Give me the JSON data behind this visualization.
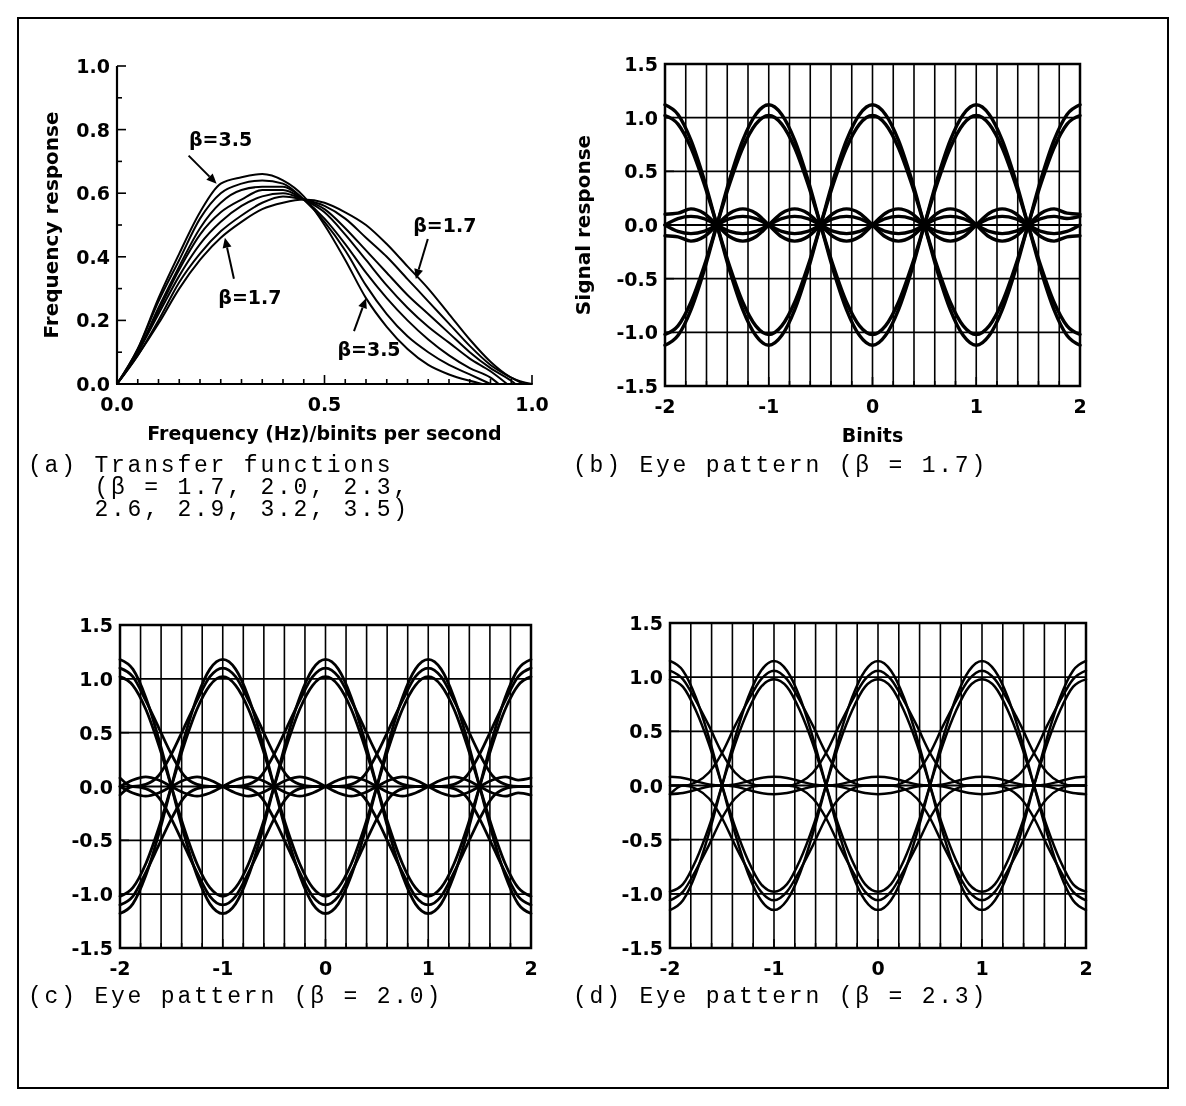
{
  "chart_data": [
    {
      "type": "line",
      "title": "(a) Transfer functions (β = 1.7, 2.0, 2.3, 2.6, 2.9, 3.2, 3.5)",
      "xlabel": "Frequency (Hz)/binits per second",
      "ylabel": "Frequency response",
      "x": [
        0,
        0.05,
        0.1,
        0.15,
        0.2,
        0.25,
        0.3,
        0.35,
        0.4,
        0.45,
        0.5,
        0.55,
        0.6,
        0.65,
        0.7,
        0.75,
        0.8,
        0.85,
        0.9,
        0.95,
        1
      ],
      "series": [
        {
          "color": "#000000",
          "values": [
            0,
            0.09,
            0.19,
            0.3,
            0.39,
            0.46,
            0.51,
            0.55,
            0.57,
            0.58,
            0.57,
            0.54,
            0.5,
            0.44,
            0.37,
            0.3,
            0.22,
            0.14,
            0.07,
            0.02,
            0
          ]
        },
        {
          "color": "#000000",
          "x": [
            0,
            0.05,
            0.1,
            0.15,
            0.2,
            0.25,
            0.3,
            0.35,
            0.4,
            0.45,
            0.5,
            0.55,
            0.6,
            0.65,
            0.7,
            0.75,
            0.8,
            0.85,
            0.9,
            0.95,
            0.98
          ],
          "values": [
            0,
            0.09,
            0.2,
            0.32,
            0.41,
            0.48,
            0.53,
            0.57,
            0.59,
            0.58,
            0.56,
            0.52,
            0.46,
            0.4,
            0.33,
            0.26,
            0.19,
            0.12,
            0.06,
            0.02,
            0
          ]
        },
        {
          "color": "#000000",
          "x": [
            0,
            0.05,
            0.1,
            0.15,
            0.2,
            0.25,
            0.3,
            0.35,
            0.4,
            0.45,
            0.5,
            0.55,
            0.6,
            0.65,
            0.7,
            0.75,
            0.8,
            0.85,
            0.9,
            0.95,
            0.96
          ],
          "values": [
            0,
            0.1,
            0.22,
            0.34,
            0.44,
            0.51,
            0.56,
            0.59,
            0.6,
            0.58,
            0.55,
            0.49,
            0.42,
            0.35,
            0.28,
            0.22,
            0.16,
            0.1,
            0.05,
            0.01,
            0
          ]
        },
        {
          "color": "#000000",
          "x": [
            0,
            0.05,
            0.1,
            0.15,
            0.2,
            0.25,
            0.3,
            0.35,
            0.4,
            0.45,
            0.5,
            0.55,
            0.6,
            0.65,
            0.7,
            0.75,
            0.8,
            0.85,
            0.9,
            0.94
          ],
          "values": [
            0,
            0.1,
            0.23,
            0.36,
            0.47,
            0.54,
            0.58,
            0.61,
            0.61,
            0.58,
            0.54,
            0.47,
            0.39,
            0.31,
            0.24,
            0.18,
            0.13,
            0.08,
            0.04,
            0
          ]
        },
        {
          "color": "#000000",
          "x": [
            0,
            0.05,
            0.1,
            0.15,
            0.2,
            0.25,
            0.3,
            0.35,
            0.4,
            0.45,
            0.5,
            0.55,
            0.6,
            0.65,
            0.7,
            0.75,
            0.8,
            0.85,
            0.9,
            0.92
          ],
          "values": [
            0,
            0.1,
            0.24,
            0.37,
            0.49,
            0.57,
            0.61,
            0.62,
            0.62,
            0.58,
            0.52,
            0.44,
            0.35,
            0.27,
            0.2,
            0.14,
            0.09,
            0.05,
            0.02,
            0
          ]
        },
        {
          "color": "#000000",
          "x": [
            0,
            0.05,
            0.1,
            0.15,
            0.2,
            0.25,
            0.3,
            0.35,
            0.4,
            0.45,
            0.5,
            0.55,
            0.6,
            0.65,
            0.7,
            0.75,
            0.8,
            0.85,
            0.9
          ],
          "values": [
            0,
            0.11,
            0.26,
            0.39,
            0.52,
            0.6,
            0.63,
            0.64,
            0.63,
            0.58,
            0.51,
            0.42,
            0.31,
            0.22,
            0.15,
            0.1,
            0.06,
            0.03,
            0
          ]
        },
        {
          "color": "#000000",
          "x": [
            0,
            0.05,
            0.1,
            0.15,
            0.2,
            0.25,
            0.3,
            0.35,
            0.4,
            0.45,
            0.5,
            0.55,
            0.6,
            0.65,
            0.7,
            0.75,
            0.8,
            0.85,
            0.88
          ],
          "values": [
            0,
            0.11,
            0.27,
            0.41,
            0.54,
            0.63,
            0.65,
            0.66,
            0.64,
            0.59,
            0.5,
            0.39,
            0.27,
            0.18,
            0.11,
            0.06,
            0.03,
            0.01,
            0
          ]
        }
      ],
      "xlim": [
        0,
        1
      ],
      "ylim": [
        0,
        1
      ],
      "xticks": [
        {
          "value": 0,
          "label": "0.0"
        },
        {
          "value": 0.05,
          "label": null
        },
        {
          "value": 0.1,
          "label": null
        },
        {
          "value": 0.15,
          "label": null
        },
        {
          "value": 0.2,
          "label": null
        },
        {
          "value": 0.25,
          "label": null
        },
        {
          "value": 0.3,
          "label": null
        },
        {
          "value": 0.35,
          "label": null
        },
        {
          "value": 0.4,
          "label": null
        },
        {
          "value": 0.45,
          "label": null
        },
        0.5,
        {
          "value": 0.55,
          "label": null
        },
        {
          "value": 0.6,
          "label": null
        },
        {
          "value": 0.65,
          "label": null
        },
        {
          "value": 0.7,
          "label": null
        },
        {
          "value": 0.75,
          "label": null
        },
        {
          "value": 0.8,
          "label": null
        },
        {
          "value": 0.85,
          "label": null
        },
        {
          "value": 0.9,
          "label": null
        },
        {
          "value": 0.95,
          "label": null
        },
        {
          "value": 1,
          "label": "1.0"
        }
      ],
      "yticks": [
        {
          "value": 0,
          "label": "0.0"
        },
        {
          "value": 0.1,
          "label": null
        },
        0.2,
        {
          "value": 0.3,
          "label": null
        },
        0.4,
        {
          "value": 0.5,
          "label": null
        },
        0.6,
        {
          "value": 0.7,
          "label": null
        },
        0.8,
        {
          "value": 0.9,
          "label": null
        },
        {
          "value": 1,
          "label": "1.0"
        }
      ],
      "annotations": [
        {
          "text": "β=3.5",
          "x": 0.24,
          "y": 0.63
        },
        {
          "text": "β=1.7",
          "x": 0.26,
          "y": 0.46
        },
        {
          "text": "β=1.7",
          "x": 0.72,
          "y": 0.33
        },
        {
          "text": "β=3.5",
          "x": 0.6,
          "y": 0.27
        }
      ]
    },
    {
      "type": "line",
      "title": "(b) Eye pattern (β = 1.7)",
      "xlabel": "Binits",
      "ylabel": "Signal response",
      "x": [
        -2,
        -1.875,
        -1.75,
        -1.625,
        -1.5,
        -1.375,
        -1.25,
        -1.125,
        -1,
        -0.875,
        -0.75,
        -0.625,
        -0.5,
        -0.375,
        -0.25,
        -0.125,
        0,
        0.125,
        0.25,
        0.375,
        0.5,
        0.625,
        0.75,
        0.875,
        1,
        1.125,
        1.25,
        1.375,
        1.5,
        1.625,
        1.75,
        1.875,
        2
      ],
      "series": [
        {
          "color": "#000000",
          "values": [
            1.12,
            1.03,
            0.79,
            0.43,
            0,
            -0.43,
            -0.79,
            -1.03,
            -1.12,
            -1.03,
            -0.79,
            -0.43,
            0,
            0.43,
            0.79,
            1.03,
            1.12,
            1.03,
            0.79,
            0.43,
            0,
            -0.43,
            -0.79,
            -1.03,
            -1.12,
            -1.03,
            -0.79,
            -0.43,
            0,
            0.43,
            0.79,
            1.03,
            1.12
          ]
        },
        {
          "color": "#000000",
          "values": [
            -1.12,
            -1.03,
            -0.79,
            -0.43,
            0,
            0.43,
            0.79,
            1.03,
            1.12,
            1.03,
            0.79,
            0.43,
            0,
            -0.43,
            -0.79,
            -1.03,
            -1.12,
            -1.03,
            -0.79,
            -0.43,
            0,
            0.43,
            0.79,
            1.03,
            1.12,
            1.03,
            0.79,
            0.43,
            0,
            -0.43,
            -0.79,
            -1.03,
            -1.12
          ]
        },
        {
          "color": "#000000",
          "values": [
            1.02,
            0.94,
            0.72,
            0.39,
            0,
            -0.39,
            -0.72,
            -0.94,
            -1.02,
            -0.94,
            -0.72,
            -0.39,
            0,
            0.39,
            0.72,
            0.94,
            1.02,
            0.94,
            0.72,
            0.39,
            0,
            -0.39,
            -0.72,
            -0.94,
            -1.02,
            -0.94,
            -0.72,
            -0.39,
            0,
            0.39,
            0.72,
            0.94,
            1.02
          ]
        },
        {
          "color": "#000000",
          "values": [
            -1.02,
            -0.94,
            -0.72,
            -0.39,
            0,
            0.39,
            0.72,
            0.94,
            1.02,
            0.94,
            0.72,
            0.39,
            0,
            -0.39,
            -0.72,
            -0.94,
            -1.02,
            -0.94,
            -0.72,
            -0.39,
            0,
            0.39,
            0.72,
            0.94,
            1.02,
            0.94,
            0.72,
            0.39,
            0,
            -0.39,
            -0.72,
            -0.94,
            -1.02
          ]
        },
        {
          "color": "#000000",
          "values": [
            0.1,
            0.11,
            0.15,
            0.11,
            0,
            -0.11,
            -0.15,
            -0.11,
            0,
            0.11,
            0.15,
            0.11,
            0,
            -0.11,
            -0.15,
            -0.11,
            0,
            0.11,
            0.15,
            0.11,
            0,
            -0.11,
            -0.15,
            -0.11,
            0,
            0.11,
            0.15,
            0.11,
            0,
            -0.11,
            -0.15,
            -0.11,
            -0.1
          ]
        },
        {
          "color": "#000000",
          "values": [
            -0.1,
            -0.11,
            -0.15,
            -0.11,
            0,
            0.11,
            0.15,
            0.11,
            0,
            -0.11,
            -0.15,
            -0.11,
            0,
            0.11,
            0.15,
            0.11,
            0,
            -0.11,
            -0.15,
            -0.11,
            0,
            0.11,
            0.15,
            0.11,
            0,
            -0.11,
            -0.15,
            -0.11,
            0,
            0.11,
            0.15,
            0.11,
            0.1
          ]
        },
        {
          "color": "#000000",
          "values": [
            0,
            0.06,
            0.08,
            0.06,
            0,
            -0.06,
            -0.08,
            -0.06,
            0,
            0.06,
            0.08,
            0.06,
            0,
            -0.06,
            -0.08,
            -0.06,
            0,
            0.06,
            0.08,
            0.06,
            0,
            -0.06,
            -0.08,
            -0.06,
            0,
            0.06,
            0.08,
            0.06,
            0,
            -0.06,
            -0.08,
            -0.06,
            0
          ]
        },
        {
          "color": "#000000",
          "values": [
            0,
            -0.06,
            -0.08,
            -0.06,
            0,
            0.06,
            0.08,
            0.06,
            0,
            -0.06,
            -0.08,
            -0.06,
            0,
            0.06,
            0.08,
            0.06,
            0,
            -0.06,
            -0.08,
            -0.06,
            0,
            0.06,
            0.08,
            0.06,
            0,
            -0.06,
            -0.08,
            -0.06,
            0,
            0.06,
            0.08,
            0.06,
            0.08
          ]
        }
      ],
      "xlim": [
        -2,
        2
      ],
      "ylim": [
        -1.5,
        1.5
      ],
      "xticks": [
        -2,
        {
          "value": -1.8,
          "label": null
        },
        {
          "value": -1.6,
          "label": null
        },
        {
          "value": -1.4,
          "label": null
        },
        {
          "value": -1.2,
          "label": null
        },
        -1,
        {
          "value": -0.8,
          "label": null
        },
        {
          "value": -0.6,
          "label": null
        },
        {
          "value": -0.4,
          "label": null
        },
        {
          "value": -0.2,
          "label": null
        },
        0,
        {
          "value": 0.2,
          "label": null
        },
        {
          "value": 0.4,
          "label": null
        },
        {
          "value": 0.6,
          "label": null
        },
        {
          "value": 0.8,
          "label": null
        },
        1,
        {
          "value": 1.2,
          "label": null
        },
        {
          "value": 1.4,
          "label": null
        },
        {
          "value": 1.6,
          "label": null
        },
        {
          "value": 1.8,
          "label": null
        },
        2
      ],
      "yticks": [
        -1.5,
        {
          "value": -1,
          "label": "-1.0"
        },
        -0.5,
        {
          "value": 0,
          "label": "0.0"
        },
        0.5,
        {
          "value": 1,
          "label": "1.0"
        },
        1.5
      ],
      "grid": true
    },
    {
      "type": "line",
      "title": "(c) Eye pattern (β = 2.0)",
      "x": [
        -2,
        -1.875,
        -1.75,
        -1.625,
        -1.5,
        -1.375,
        -1.25,
        -1.125,
        -1,
        -0.875,
        -0.75,
        -0.625,
        -0.5,
        -0.375,
        -0.25,
        -0.125,
        0,
        0.125,
        0.25,
        0.375,
        0.5,
        0.625,
        0.75,
        0.875,
        1,
        1.125,
        1.25,
        1.375,
        1.5,
        1.625,
        1.75,
        1.875,
        2
      ],
      "series": [
        {
          "color": "#000000",
          "values": [
            1.18,
            1.09,
            0.83,
            0.45,
            0,
            -0.45,
            -0.83,
            -1.09,
            -1.18,
            -1.09,
            -0.83,
            -0.45,
            0,
            0.45,
            0.83,
            1.09,
            1.18,
            1.09,
            0.83,
            0.45,
            0,
            -0.45,
            -0.83,
            -1.09,
            -1.18,
            -1.09,
            -0.83,
            -0.45,
            0,
            0.45,
            0.83,
            1.09,
            1.18
          ]
        },
        {
          "color": "#000000",
          "values": [
            -1.18,
            -1.09,
            -0.83,
            -0.45,
            0,
            0.45,
            0.83,
            1.09,
            1.18,
            1.09,
            0.83,
            0.45,
            0,
            -0.45,
            -0.83,
            -1.09,
            -1.18,
            -1.09,
            -0.83,
            -0.45,
            0,
            0.45,
            0.83,
            1.09,
            1.18,
            1.09,
            0.83,
            0.45,
            0,
            -0.45,
            -0.83,
            -1.09,
            -1.18
          ]
        },
        {
          "color": "#000000",
          "values": [
            1.02,
            0.94,
            0.72,
            0.39,
            0,
            -0.39,
            -0.72,
            -0.94,
            -1.02,
            -0.94,
            -0.72,
            -0.39,
            0,
            0.39,
            0.72,
            0.94,
            1.02,
            0.94,
            0.72,
            0.39,
            0,
            -0.39,
            -0.72,
            -0.94,
            -1.02,
            -0.94,
            -0.72,
            -0.39,
            0,
            0.39,
            0.72,
            0.94,
            1.02
          ]
        },
        {
          "color": "#000000",
          "values": [
            -1.02,
            -0.94,
            -0.72,
            -0.39,
            0,
            0.39,
            0.72,
            0.94,
            1.02,
            0.94,
            0.72,
            0.39,
            0,
            -0.39,
            -0.72,
            -0.94,
            -1.02,
            -0.94,
            -0.72,
            -0.39,
            0,
            0.39,
            0.72,
            0.94,
            1.02,
            0.94,
            0.72,
            0.39,
            0,
            -0.39,
            -0.72,
            -0.94,
            -1.02
          ]
        },
        {
          "color": "#000000",
          "values": [
            1.1,
            1.02,
            0.8,
            0.55,
            0.3,
            0.1,
            0.02,
            0,
            0,
            0,
            0.02,
            0.1,
            0.3,
            0.55,
            0.8,
            1.02,
            1.1,
            1.02,
            0.8,
            0.55,
            0.3,
            0.1,
            0.02,
            0,
            0,
            0,
            0.02,
            0.1,
            0.3,
            0.55,
            0.8,
            1.02,
            1.1
          ]
        },
        {
          "color": "#000000",
          "values": [
            0.08,
            0,
            0.02,
            0.1,
            0.3,
            0.55,
            0.8,
            1.02,
            1.1,
            1.02,
            0.8,
            0.55,
            0.3,
            0.1,
            0.02,
            0,
            0,
            0,
            0.02,
            0.1,
            0.3,
            0.55,
            0.8,
            1.02,
            1.1,
            1.02,
            0.8,
            0.55,
            0.3,
            0.1,
            0.02,
            0,
            0
          ]
        },
        {
          "color": "#000000",
          "values": [
            -1.1,
            -1.02,
            -0.8,
            -0.55,
            -0.3,
            -0.1,
            -0.02,
            0,
            0,
            0,
            -0.02,
            -0.1,
            -0.3,
            -0.55,
            -0.8,
            -1.02,
            -1.1,
            -1.02,
            -0.8,
            -0.55,
            -0.3,
            -0.1,
            -0.02,
            0,
            0,
            0,
            -0.02,
            -0.1,
            -0.3,
            -0.55,
            -0.8,
            -1.02,
            -1.1
          ]
        },
        {
          "color": "#000000",
          "values": [
            -0.08,
            0,
            -0.02,
            -0.1,
            -0.3,
            -0.55,
            -0.8,
            -1.02,
            -1.1,
            -1.02,
            -0.8,
            -0.55,
            -0.3,
            -0.1,
            -0.02,
            0,
            0,
            0,
            -0.02,
            -0.1,
            -0.3,
            -0.55,
            -0.8,
            -1.02,
            -1.1,
            -1.02,
            -0.8,
            -0.55,
            -0.3,
            -0.1,
            -0.02,
            0,
            0
          ]
        },
        {
          "color": "#000000",
          "values": [
            0,
            0.06,
            0.09,
            0.06,
            0,
            -0.06,
            -0.09,
            -0.06,
            0,
            0.06,
            0.09,
            0.06,
            0,
            -0.06,
            -0.09,
            -0.06,
            0,
            0.06,
            0.09,
            0.06,
            0,
            -0.06,
            -0.09,
            -0.06,
            0,
            0.06,
            0.09,
            0.06,
            0,
            -0.06,
            -0.09,
            -0.06,
            -0.08
          ]
        },
        {
          "color": "#000000",
          "values": [
            0,
            -0.06,
            -0.09,
            -0.06,
            0,
            0.06,
            0.09,
            0.06,
            0,
            -0.06,
            -0.09,
            -0.06,
            0,
            0.06,
            0.09,
            0.06,
            0,
            -0.06,
            -0.09,
            -0.06,
            0,
            0.06,
            0.09,
            0.06,
            0,
            -0.06,
            -0.09,
            -0.06,
            0,
            0.06,
            0.09,
            0.06,
            0.08
          ]
        }
      ],
      "xlim": [
        -2,
        2
      ],
      "ylim": [
        -1.5,
        1.5
      ],
      "xticks": [
        -2,
        {
          "value": -1.8,
          "label": null
        },
        {
          "value": -1.6,
          "label": null
        },
        {
          "value": -1.4,
          "label": null
        },
        {
          "value": -1.2,
          "label": null
        },
        -1,
        {
          "value": -0.8,
          "label": null
        },
        {
          "value": -0.6,
          "label": null
        },
        {
          "value": -0.4,
          "label": null
        },
        {
          "value": -0.2,
          "label": null
        },
        0,
        {
          "value": 0.2,
          "label": null
        },
        {
          "value": 0.4,
          "label": null
        },
        {
          "value": 0.6,
          "label": null
        },
        {
          "value": 0.8,
          "label": null
        },
        1,
        {
          "value": 1.2,
          "label": null
        },
        {
          "value": 1.4,
          "label": null
        },
        {
          "value": 1.6,
          "label": null
        },
        {
          "value": 1.8,
          "label": null
        },
        2
      ],
      "yticks": [
        -1.5,
        {
          "value": -1,
          "label": "-1.0"
        },
        -0.5,
        {
          "value": 0,
          "label": "0.0"
        },
        0.5,
        {
          "value": 1,
          "label": "1.0"
        },
        1.5
      ],
      "grid": true
    },
    {
      "type": "line",
      "title": "(d) Eye pattern (β = 2.3)",
      "x": [
        -2,
        -1.875,
        -1.75,
        -1.625,
        -1.5,
        -1.375,
        -1.25,
        -1.125,
        -1,
        -0.875,
        -0.75,
        -0.625,
        -0.5,
        -0.375,
        -0.25,
        -0.125,
        0,
        0.125,
        0.25,
        0.375,
        0.5,
        0.625,
        0.75,
        0.875,
        1,
        1.125,
        1.25,
        1.375,
        1.5,
        1.625,
        1.75,
        1.875,
        2
      ],
      "series": [
        {
          "color": "#000000",
          "values": [
            1.15,
            1.06,
            0.81,
            0.44,
            0,
            -0.44,
            -0.81,
            -1.06,
            -1.15,
            -1.06,
            -0.81,
            -0.44,
            0,
            0.44,
            0.81,
            1.06,
            1.15,
            1.06,
            0.81,
            0.44,
            0,
            -0.44,
            -0.81,
            -1.06,
            -1.15,
            -1.06,
            -0.81,
            -0.44,
            0,
            0.44,
            0.81,
            1.06,
            1.15
          ]
        },
        {
          "color": "#000000",
          "values": [
            -1.15,
            -1.06,
            -0.81,
            -0.44,
            0,
            0.44,
            0.81,
            1.06,
            1.15,
            1.06,
            0.81,
            0.44,
            0,
            -0.44,
            -0.81,
            -1.06,
            -1.15,
            -1.06,
            -0.81,
            -0.44,
            0,
            0.44,
            0.81,
            1.06,
            1.15,
            1.06,
            0.81,
            0.44,
            0,
            -0.44,
            -0.81,
            -1.06,
            -1.15
          ]
        },
        {
          "color": "#000000",
          "values": [
            0.98,
            0.91,
            0.69,
            0.38,
            0,
            -0.38,
            -0.69,
            -0.91,
            -0.98,
            -0.91,
            -0.69,
            -0.38,
            0,
            0.38,
            0.69,
            0.91,
            0.98,
            0.91,
            0.69,
            0.38,
            0,
            -0.38,
            -0.69,
            -0.91,
            -0.98,
            -0.91,
            -0.69,
            -0.38,
            0,
            0.38,
            0.69,
            0.91,
            0.98
          ]
        },
        {
          "color": "#000000",
          "values": [
            -0.98,
            -0.91,
            -0.69,
            -0.38,
            0,
            0.38,
            0.69,
            0.91,
            0.98,
            0.91,
            0.69,
            0.38,
            0,
            -0.38,
            -0.69,
            -0.91,
            -0.98,
            -0.91,
            -0.69,
            -0.38,
            0,
            0.38,
            0.69,
            0.91,
            0.98,
            0.91,
            0.69,
            0.38,
            0,
            -0.38,
            -0.69,
            -0.91,
            -0.98
          ]
        },
        {
          "color": "#000000",
          "values": [
            1.06,
            0.98,
            0.78,
            0.55,
            0.3,
            0.12,
            0.03,
            0,
            0,
            0,
            0.03,
            0.12,
            0.3,
            0.55,
            0.78,
            0.98,
            1.06,
            0.98,
            0.78,
            0.55,
            0.3,
            0.12,
            0.03,
            0,
            0,
            0,
            0.03,
            0.12,
            0.3,
            0.55,
            0.78,
            0.98,
            1.06
          ]
        },
        {
          "color": "#000000",
          "values": [
            0,
            0,
            0.03,
            0.12,
            0.3,
            0.55,
            0.78,
            0.98,
            1.06,
            0.98,
            0.78,
            0.55,
            0.3,
            0.12,
            0.03,
            0,
            0,
            0,
            0.03,
            0.12,
            0.3,
            0.55,
            0.78,
            0.98,
            1.06,
            0.98,
            0.78,
            0.55,
            0.3,
            0.12,
            0.03,
            0,
            0
          ]
        },
        {
          "color": "#000000",
          "values": [
            -1.06,
            -0.98,
            -0.78,
            -0.55,
            -0.3,
            -0.12,
            -0.03,
            0,
            0,
            0,
            -0.03,
            -0.12,
            -0.3,
            -0.55,
            -0.78,
            -0.98,
            -1.06,
            -0.98,
            -0.78,
            -0.55,
            -0.3,
            -0.12,
            -0.03,
            0,
            0,
            0,
            -0.03,
            -0.12,
            -0.3,
            -0.55,
            -0.78,
            -0.98,
            -1.06
          ]
        },
        {
          "color": "#000000",
          "values": [
            -0.08,
            0,
            -0.03,
            -0.12,
            -0.3,
            -0.55,
            -0.78,
            -0.98,
            -1.06,
            -0.98,
            -0.78,
            -0.55,
            -0.3,
            -0.12,
            -0.03,
            0,
            0,
            0,
            -0.03,
            -0.12,
            -0.3,
            -0.55,
            -0.78,
            -0.98,
            -1.06,
            -0.98,
            -0.78,
            -0.55,
            -0.3,
            -0.12,
            -0.03,
            0,
            0
          ]
        },
        {
          "color": "#000000",
          "values": [
            0.08,
            0.07,
            0.04,
            0.01,
            0,
            0.01,
            0.04,
            0.07,
            0.08,
            0.07,
            0.04,
            0.01,
            0,
            0.01,
            0.04,
            0.07,
            0.08,
            0.07,
            0.04,
            0.01,
            0,
            0.01,
            0.04,
            0.07,
            0.08,
            0.07,
            0.04,
            0.01,
            0,
            0.01,
            0.04,
            0.07,
            0.08
          ]
        },
        {
          "color": "#000000",
          "values": [
            -0.08,
            -0.07,
            -0.04,
            -0.01,
            0,
            -0.01,
            -0.04,
            -0.07,
            -0.08,
            -0.07,
            -0.04,
            -0.01,
            0,
            -0.01,
            -0.04,
            -0.07,
            -0.08,
            -0.07,
            -0.04,
            -0.01,
            0,
            -0.01,
            -0.04,
            -0.07,
            -0.08,
            -0.07,
            -0.04,
            -0.01,
            0,
            -0.01,
            -0.04,
            -0.07,
            -0.08
          ]
        }
      ],
      "xlim": [
        -2,
        2
      ],
      "ylim": [
        -1.5,
        1.5
      ],
      "xticks": [
        -2,
        {
          "value": -1.8,
          "label": null
        },
        {
          "value": -1.6,
          "label": null
        },
        {
          "value": -1.4,
          "label": null
        },
        {
          "value": -1.2,
          "label": null
        },
        -1,
        {
          "value": -0.8,
          "label": null
        },
        {
          "value": -0.6,
          "label": null
        },
        {
          "value": -0.4,
          "label": null
        },
        {
          "value": -0.2,
          "label": null
        },
        0,
        {
          "value": 0.2,
          "label": null
        },
        {
          "value": 0.4,
          "label": null
        },
        {
          "value": 0.6,
          "label": null
        },
        {
          "value": 0.8,
          "label": null
        },
        1,
        {
          "value": 1.2,
          "label": null
        },
        {
          "value": 1.4,
          "label": null
        },
        {
          "value": 1.6,
          "label": null
        },
        {
          "value": 1.8,
          "label": null
        },
        2
      ],
      "yticks": [
        -1.5,
        {
          "value": -1,
          "label": "-1.0"
        },
        -0.5,
        {
          "value": 0,
          "label": "0.0"
        },
        0.5,
        {
          "value": 1,
          "label": "1.0"
        },
        1.5
      ],
      "grid": true
    }
  ]
}
